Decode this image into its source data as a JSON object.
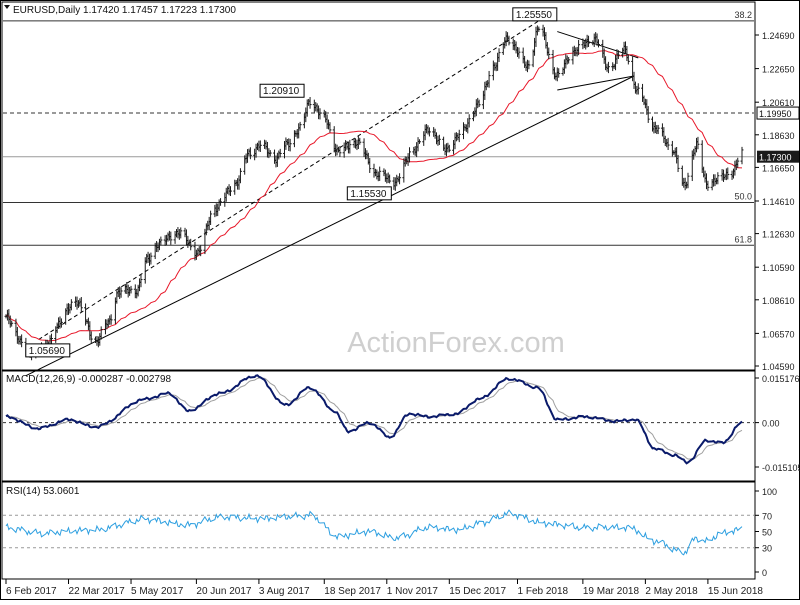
{
  "chart_data": {
    "type": "line",
    "colors": {
      "price": "#1a1a1a",
      "ma": "#e8182a",
      "macd": "#0a1a6a",
      "signal": "#a0a0a0",
      "rsi": "#2d9fe0",
      "background": "#ffffff",
      "axis_text": "#222222",
      "current_box": "#1a1a1a"
    },
    "price_panel": {
      "header": "EURUSD,Daily  1.17420 1.17457 1.17223 1.17300",
      "watermark": "ActionForex.com",
      "current_label": "1.17300",
      "y_ticks": [
        "1.24690",
        "1.22650",
        "1.20610",
        "1.18630",
        "1.16650",
        "1.14610",
        "1.12630",
        "1.10590",
        "1.08610",
        "1.06570",
        "1.04590"
      ],
      "y_tick_values": [
        1.2469,
        1.2265,
        1.2061,
        1.1863,
        1.1665,
        1.1461,
        1.1263,
        1.1059,
        1.0861,
        1.0657,
        1.0459
      ],
      "levels": [
        {
          "value": 1.2555,
          "style": "solid",
          "label": "38.2"
        },
        {
          "value": 1.1995,
          "style": "dashed",
          "label": "1.19950"
        },
        {
          "value": 1.173,
          "style": "solid-gray",
          "label": ""
        },
        {
          "value": 1.1452,
          "style": "solid",
          "label": "50.0"
        },
        {
          "value": 1.1192,
          "style": "solid",
          "label": "61.8"
        }
      ],
      "annotations": [
        {
          "text": "1.25550",
          "date": "2018-02-16",
          "value": 1.2555
        },
        {
          "text": "1.20910",
          "date": "2017-09-08",
          "value": 1.2091
        },
        {
          "text": "1.15530",
          "date": "2017-11-07",
          "value": 1.1553
        },
        {
          "text": "1.05690",
          "date": "2017-03-06",
          "value": 1.0569
        }
      ],
      "trendlines": [
        {
          "style": "solid",
          "from": {
            "date": "2017-02-20",
            "value": 1.04
          },
          "to": {
            "date": "2018-04-24",
            "value": 1.222
          }
        },
        {
          "style": "dashed",
          "from": {
            "date": "2017-03-01",
            "value": 1.062
          },
          "to": {
            "date": "2018-02-16",
            "value": 1.2555
          }
        },
        {
          "style": "solid",
          "from": {
            "date": "2018-03-01",
            "value": 1.249
          },
          "to": {
            "date": "2018-04-27",
            "value": 1.233
          }
        },
        {
          "style": "solid",
          "from": {
            "date": "2018-03-01",
            "value": 1.2135
          },
          "to": {
            "date": "2018-04-24",
            "value": 1.222
          }
        }
      ],
      "price_anchors": [
        [
          "2017-02-06",
          1.075
        ],
        [
          "2017-02-22",
          1.054
        ],
        [
          "2017-03-06",
          1.057
        ],
        [
          "2017-03-15",
          1.072
        ],
        [
          "2017-03-27",
          1.086
        ],
        [
          "2017-04-10",
          1.061
        ],
        [
          "2017-04-19",
          1.072
        ],
        [
          "2017-04-26",
          1.091
        ],
        [
          "2017-05-09",
          1.092
        ],
        [
          "2017-05-16",
          1.11
        ],
        [
          "2017-05-24",
          1.12
        ],
        [
          "2017-06-07",
          1.127
        ],
        [
          "2017-06-21",
          1.115
        ],
        [
          "2017-07-03",
          1.142
        ],
        [
          "2017-07-18",
          1.157
        ],
        [
          "2017-07-27",
          1.175
        ],
        [
          "2017-08-04",
          1.18
        ],
        [
          "2017-08-15",
          1.172
        ],
        [
          "2017-08-22",
          1.18
        ],
        [
          "2017-09-01",
          1.19
        ],
        [
          "2017-09-08",
          1.207
        ],
        [
          "2017-09-18",
          1.196
        ],
        [
          "2017-09-28",
          1.176
        ],
        [
          "2017-10-10",
          1.182
        ],
        [
          "2017-10-26",
          1.162
        ],
        [
          "2017-11-07",
          1.158
        ],
        [
          "2017-11-20",
          1.178
        ],
        [
          "2017-12-01",
          1.19
        ],
        [
          "2017-12-12",
          1.177
        ],
        [
          "2017-12-22",
          1.186
        ],
        [
          "2018-01-05",
          1.205
        ],
        [
          "2018-01-15",
          1.228
        ],
        [
          "2018-01-25",
          1.245
        ],
        [
          "2018-02-08",
          1.228
        ],
        [
          "2018-02-16",
          1.251
        ],
        [
          "2018-03-01",
          1.222
        ],
        [
          "2018-03-12",
          1.237
        ],
        [
          "2018-03-27",
          1.245
        ],
        [
          "2018-04-06",
          1.227
        ],
        [
          "2018-04-17",
          1.238
        ],
        [
          "2018-04-27",
          1.212
        ],
        [
          "2018-05-09",
          1.19
        ],
        [
          "2018-05-21",
          1.178
        ],
        [
          "2018-05-29",
          1.155
        ],
        [
          "2018-06-07",
          1.18
        ],
        [
          "2018-06-14",
          1.157
        ],
        [
          "2018-06-21",
          1.159
        ],
        [
          "2018-07-02",
          1.164
        ],
        [
          "2018-07-09",
          1.175
        ]
      ]
    },
    "macd_panel": {
      "header": "MACD(12,26,9) -0.000287 -0.002798",
      "y_ticks": [
        "0.015176",
        "0.00",
        "-0.015105"
      ],
      "y_tick_values": [
        0.015176,
        0.0,
        -0.015105
      ],
      "macd_anchors": [
        [
          "2017-02-06",
          0.002
        ],
        [
          "2017-03-01",
          -0.002
        ],
        [
          "2017-03-22",
          0.001
        ],
        [
          "2017-04-10",
          -0.0015
        ],
        [
          "2017-05-15",
          0.008
        ],
        [
          "2017-06-01",
          0.01
        ],
        [
          "2017-06-14",
          0.004
        ],
        [
          "2017-07-07",
          0.01
        ],
        [
          "2017-08-01",
          0.016
        ],
        [
          "2017-08-22",
          0.006
        ],
        [
          "2017-09-08",
          0.012
        ],
        [
          "2017-09-25",
          0.004
        ],
        [
          "2017-10-05",
          -0.003
        ],
        [
          "2017-10-20",
          0.0
        ],
        [
          "2017-11-03",
          -0.005
        ],
        [
          "2017-11-17",
          0.003
        ],
        [
          "2017-12-01",
          0.002
        ],
        [
          "2017-12-20",
          0.003
        ],
        [
          "2018-01-05",
          0.008
        ],
        [
          "2018-01-26",
          0.015
        ],
        [
          "2018-02-15",
          0.012
        ],
        [
          "2018-03-01",
          0.001
        ],
        [
          "2018-03-22",
          0.002
        ],
        [
          "2018-04-10",
          0.0005
        ],
        [
          "2018-04-25",
          0.001
        ],
        [
          "2018-05-09",
          -0.009
        ],
        [
          "2018-05-22",
          -0.011
        ],
        [
          "2018-06-01",
          -0.0135
        ],
        [
          "2018-06-14",
          -0.006
        ],
        [
          "2018-06-25",
          -0.007
        ],
        [
          "2018-07-09",
          0.0
        ]
      ]
    },
    "rsi_panel": {
      "header": "RSI(14) 53.0601",
      "y_ticks": [
        "100",
        "70",
        "50",
        "30",
        "0"
      ],
      "y_tick_values": [
        100,
        70,
        50,
        30,
        0
      ],
      "rsi_anchors": [
        [
          "2017-02-06",
          55
        ],
        [
          "2017-03-01",
          48
        ],
        [
          "2017-04-10",
          52
        ],
        [
          "2017-05-15",
          65
        ],
        [
          "2017-06-14",
          58
        ],
        [
          "2017-07-07",
          68
        ],
        [
          "2017-08-04",
          66
        ],
        [
          "2017-09-08",
          70
        ],
        [
          "2017-09-28",
          44
        ],
        [
          "2017-10-20",
          50
        ],
        [
          "2017-11-07",
          42
        ],
        [
          "2017-12-01",
          55
        ],
        [
          "2017-12-22",
          52
        ],
        [
          "2018-01-05",
          60
        ],
        [
          "2018-01-26",
          72
        ],
        [
          "2018-02-20",
          60
        ],
        [
          "2018-03-20",
          55
        ],
        [
          "2018-04-20",
          55
        ],
        [
          "2018-05-09",
          38
        ],
        [
          "2018-05-29",
          24
        ],
        [
          "2018-06-07",
          42
        ],
        [
          "2018-06-14",
          38
        ],
        [
          "2018-06-25",
          48
        ],
        [
          "2018-07-09",
          53
        ]
      ]
    },
    "x_ticks": [
      {
        "label": "6 Feb 2017",
        "date": "2017-02-06"
      },
      {
        "label": "22 Mar 2017",
        "date": "2017-03-22"
      },
      {
        "label": "5 May 2017",
        "date": "2017-05-05"
      },
      {
        "label": "20 Jun 2017",
        "date": "2017-06-20"
      },
      {
        "label": "3 Aug 2017",
        "date": "2017-08-03"
      },
      {
        "label": "18 Sep 2017",
        "date": "2017-09-18"
      },
      {
        "label": "1 Nov 2017",
        "date": "2017-11-01"
      },
      {
        "label": "15 Dec 2017",
        "date": "2017-12-15"
      },
      {
        "label": "1 Feb 2018",
        "date": "2018-02-01"
      },
      {
        "label": "19 Mar 2018",
        "date": "2018-03-19"
      },
      {
        "label": "2 May 2018",
        "date": "2018-05-02"
      },
      {
        "label": "15 Jun 2018",
        "date": "2018-06-15"
      }
    ]
  }
}
